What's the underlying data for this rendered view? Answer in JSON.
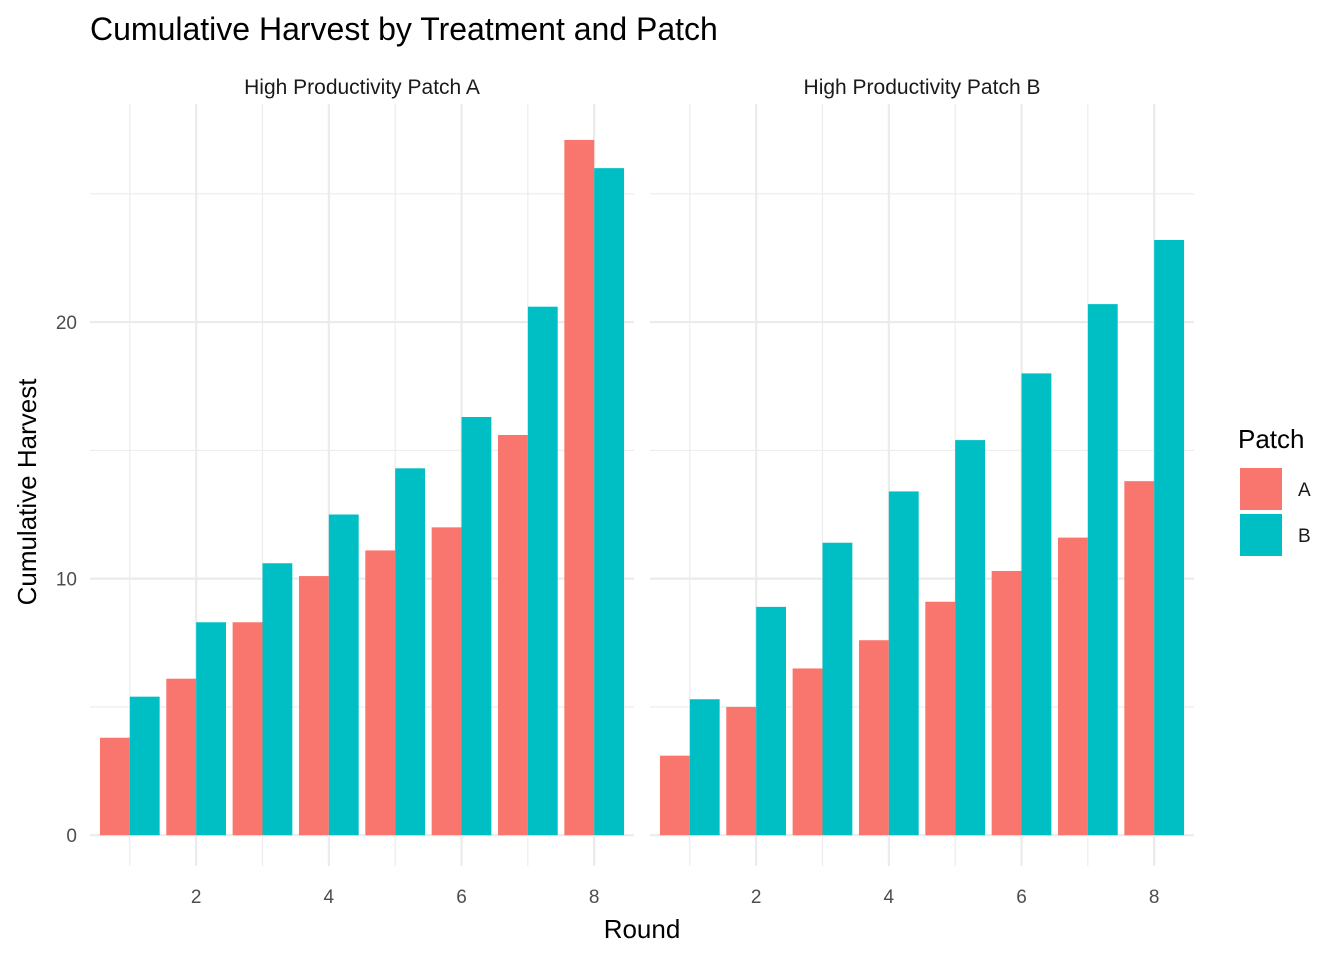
{
  "chart_data": {
    "type": "bar",
    "title": "Cumulative Harvest by Treatment and Patch",
    "xlabel": "Round",
    "ylabel": "Cumulative Harvest",
    "legend": {
      "title": "Patch",
      "placement": "right"
    },
    "grid": true,
    "x": [
      1,
      2,
      3,
      4,
      5,
      6,
      7,
      8
    ],
    "x_ticks": [
      2,
      4,
      6,
      8
    ],
    "y_ticks": [
      0,
      10,
      20
    ],
    "ylim": [
      -1.2,
      28.5
    ],
    "xlim": [
      0.4,
      8.6
    ],
    "colors": {
      "A": "#F8766D",
      "B": "#00BFC4"
    },
    "panels": [
      {
        "name": "High Productivity Patch A",
        "series": [
          {
            "name": "A",
            "values": [
              3.8,
              6.1,
              8.3,
              10.1,
              11.1,
              12.0,
              15.6,
              27.1
            ]
          },
          {
            "name": "B",
            "values": [
              5.4,
              8.3,
              10.6,
              12.5,
              14.3,
              16.3,
              20.6,
              26.0
            ]
          }
        ]
      },
      {
        "name": "High Productivity Patch B",
        "series": [
          {
            "name": "A",
            "values": [
              3.1,
              5.0,
              6.5,
              7.6,
              9.1,
              10.3,
              11.6,
              13.8
            ]
          },
          {
            "name": "B",
            "values": [
              5.3,
              8.9,
              11.4,
              13.4,
              15.4,
              18.0,
              20.7,
              23.2
            ]
          }
        ]
      }
    ]
  }
}
